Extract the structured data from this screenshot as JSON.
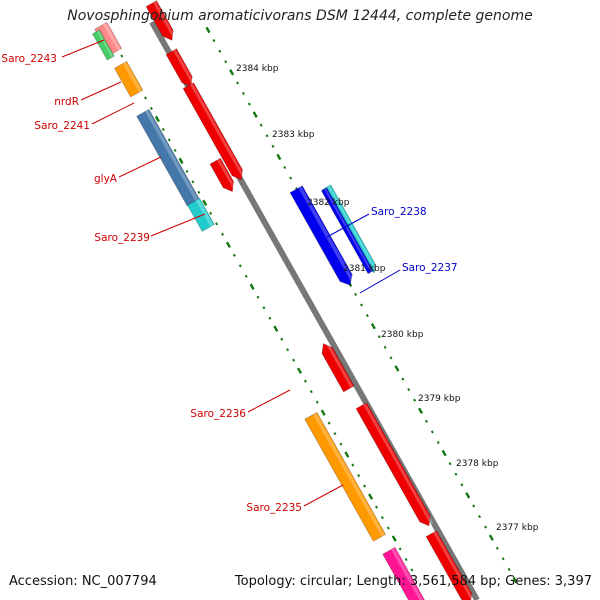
{
  "title": "Novosphingobium aromaticivorans DSM 12444, complete genome",
  "footer": {
    "accession": "Accession: NC_007794",
    "summary": "Topology: circular; Length: 3,561,584 bp; Genes: 3,397"
  },
  "ruler": [
    {
      "label": "2384 kbp"
    },
    {
      "label": "2383 kbp"
    },
    {
      "label": "2382 kbp"
    },
    {
      "label": "2381 kbp"
    },
    {
      "label": "2380 kbp"
    },
    {
      "label": "2379 kbp"
    },
    {
      "label": "2378 kbp"
    },
    {
      "label": "2377 kbp"
    }
  ],
  "gene_labels": [
    {
      "name": "Saro_2243",
      "color": "#cc0000"
    },
    {
      "name": "nrdR",
      "color": "#cc0000"
    },
    {
      "name": "Saro_2241",
      "color": "#cc0000"
    },
    {
      "name": "glyA",
      "color": "#cc0000"
    },
    {
      "name": "Saro_2239",
      "color": "#cc0000"
    },
    {
      "name": "Saro_2238",
      "color": "#0000cc"
    },
    {
      "name": "Saro_2237",
      "color": "#0000cc"
    },
    {
      "name": "Saro_2236",
      "color": "#cc0000"
    },
    {
      "name": "Saro_2235",
      "color": "#cc0000"
    }
  ],
  "colors": {
    "backbone": "#888888",
    "ruler_dots": "#117711",
    "forward_gene": "#ee0000",
    "reverse_gene": "#0000ee",
    "cyan_gene": "#22cccc",
    "steelblue_gene": "#4477aa",
    "orange_gene": "#ff9900",
    "pink_gene": "#ff1493",
    "light_red_gene": "#ff8888",
    "green_gene": "#44cc66"
  }
}
